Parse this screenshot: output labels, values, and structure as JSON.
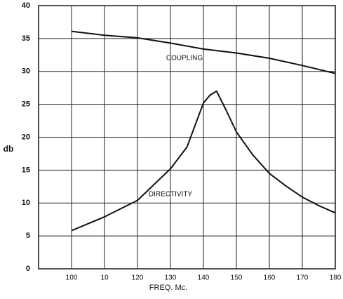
{
  "chart_data": {
    "type": "line",
    "x_label": "FREQ. Mc.",
    "y_label": "db",
    "xlim": [
      90,
      180
    ],
    "xticks": [
      100,
      {
        "value": 110,
        "label": "10"
      },
      120,
      130,
      140,
      150,
      160,
      170,
      180
    ],
    "ylim": [
      0,
      40
    ],
    "yticks": [
      0,
      5,
      10,
      15,
      20,
      25,
      30,
      35,
      40
    ],
    "grid": true,
    "series": [
      {
        "name": "COUPLING",
        "color": "#111111",
        "x": [
          100,
          110,
          120,
          130,
          140,
          150,
          160,
          170,
          180
        ],
        "values": [
          36.1,
          35.5,
          35.1,
          34.3,
          33.4,
          32.8,
          32.0,
          30.9,
          29.7
        ]
      },
      {
        "name": "DIRECTIVITY",
        "color": "#111111",
        "x": [
          100,
          110,
          120,
          130,
          135,
          140,
          142,
          144,
          147,
          150,
          155,
          160,
          165,
          170,
          175,
          180
        ],
        "values": [
          5.8,
          7.9,
          10.4,
          15.2,
          18.5,
          25.2,
          26.4,
          27.0,
          24.0,
          20.8,
          17.3,
          14.5,
          12.6,
          10.9,
          9.6,
          8.5
        ]
      }
    ]
  }
}
